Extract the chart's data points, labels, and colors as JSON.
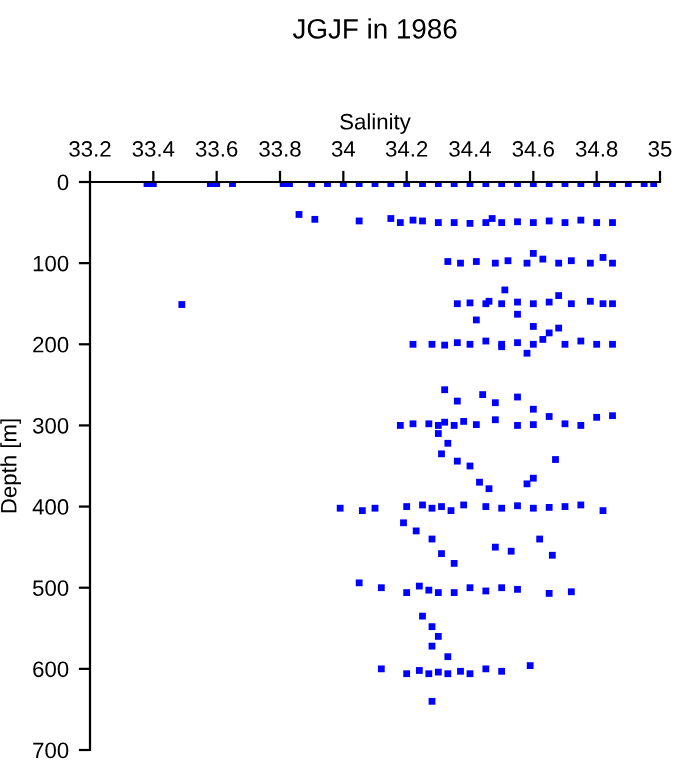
{
  "chart_data": {
    "type": "scatter",
    "title": "JGJF in 1986",
    "xlabel": "Salinity",
    "ylabel": "Depth [m]",
    "xlim": [
      33.2,
      35
    ],
    "xticks": [
      33.2,
      33.4,
      33.6,
      33.8,
      34,
      34.2,
      34.4,
      34.6,
      34.8,
      35
    ],
    "ylim": [
      700,
      0
    ],
    "yticks": [
      0,
      100,
      200,
      300,
      400,
      500,
      600,
      700
    ],
    "grid": false,
    "legend": false,
    "marker": "square",
    "series": [
      {
        "color": "#0000ff",
        "x": [
          33.38,
          33.4,
          33.58,
          33.6,
          33.65,
          33.81,
          33.83,
          33.9,
          33.95,
          34.0,
          34.05,
          34.1,
          34.15,
          34.2,
          34.25,
          34.3,
          34.35,
          34.4,
          34.45,
          34.5,
          34.55,
          34.6,
          34.65,
          34.7,
          34.75,
          34.8,
          34.85,
          34.9,
          34.95,
          34.98,
          33.86,
          33.91,
          34.05,
          34.15,
          34.18,
          34.22,
          34.25,
          34.3,
          34.35,
          34.4,
          34.45,
          34.47,
          34.5,
          34.55,
          34.6,
          34.65,
          34.7,
          34.75,
          34.8,
          34.85,
          34.33,
          34.37,
          34.42,
          34.48,
          34.52,
          34.58,
          34.6,
          34.63,
          34.68,
          34.72,
          34.78,
          34.82,
          34.85,
          33.49,
          34.36,
          34.4,
          34.45,
          34.46,
          34.5,
          34.55,
          34.6,
          34.65,
          34.68,
          34.72,
          34.78,
          34.82,
          34.85,
          34.42,
          34.51,
          34.55,
          34.22,
          34.28,
          34.32,
          34.36,
          34.4,
          34.45,
          34.5,
          34.55,
          34.6,
          34.63,
          34.65,
          34.7,
          34.75,
          34.8,
          34.85,
          34.6,
          34.58,
          34.68,
          34.5,
          34.32,
          34.36,
          34.44,
          34.48,
          34.55,
          34.6,
          34.18,
          34.22,
          34.27,
          34.3,
          34.32,
          34.35,
          34.38,
          34.42,
          34.48,
          34.55,
          34.6,
          34.65,
          34.7,
          34.75,
          34.8,
          34.85,
          34.3,
          34.33,
          34.31,
          34.36,
          34.4,
          34.43,
          34.46,
          34.58,
          34.6,
          34.67,
          33.99,
          34.06,
          34.1,
          34.2,
          34.25,
          34.28,
          34.31,
          34.34,
          34.38,
          34.45,
          34.5,
          34.55,
          34.6,
          34.65,
          34.7,
          34.75,
          34.82,
          34.19,
          34.23,
          34.28,
          34.31,
          34.35,
          34.48,
          34.53,
          34.62,
          34.66,
          34.05,
          34.12,
          34.2,
          34.24,
          34.27,
          34.3,
          34.35,
          34.4,
          34.45,
          34.5,
          34.55,
          34.65,
          34.72,
          34.25,
          34.28,
          34.3,
          34.28,
          34.33,
          34.12,
          34.2,
          34.24,
          34.27,
          34.3,
          34.33,
          34.37,
          34.4,
          34.45,
          34.5,
          34.59,
          34.28
        ],
        "values": [
          2,
          2,
          2,
          2,
          2,
          2,
          2,
          2,
          2,
          2,
          2,
          2,
          2,
          2,
          2,
          2,
          2,
          2,
          2,
          2,
          2,
          2,
          2,
          2,
          2,
          2,
          2,
          2,
          2,
          2,
          40,
          46,
          48,
          45,
          50,
          47,
          48,
          50,
          50,
          51,
          50,
          45,
          50,
          49,
          50,
          48,
          50,
          47,
          50,
          50,
          98,
          100,
          98,
          100,
          97,
          100,
          88,
          95,
          100,
          97,
          100,
          93,
          100,
          151,
          150,
          149,
          150,
          147,
          150,
          148,
          150,
          148,
          140,
          150,
          147,
          150,
          150,
          170,
          133,
          163,
          200,
          200,
          201,
          198,
          200,
          196,
          200,
          198,
          200,
          194,
          186,
          200,
          196,
          200,
          200,
          178,
          211,
          180,
          203,
          256,
          270,
          262,
          272,
          265,
          280,
          300,
          298,
          298,
          300,
          296,
          300,
          295,
          299,
          293,
          300,
          299,
          289,
          298,
          300,
          290,
          288,
          310,
          322,
          335,
          344,
          350,
          370,
          378,
          372,
          365,
          342,
          402,
          405,
          402,
          400,
          398,
          402,
          400,
          405,
          398,
          400,
          402,
          399,
          402,
          401,
          400,
          398,
          405,
          420,
          430,
          440,
          458,
          470,
          450,
          455,
          440,
          460,
          494,
          500,
          506,
          498,
          503,
          506,
          506,
          500,
          504,
          500,
          502,
          507,
          505,
          535,
          548,
          560,
          572,
          585,
          600,
          606,
          602,
          606,
          604,
          606,
          603,
          606,
          600,
          603,
          596,
          640
        ]
      }
    ]
  }
}
